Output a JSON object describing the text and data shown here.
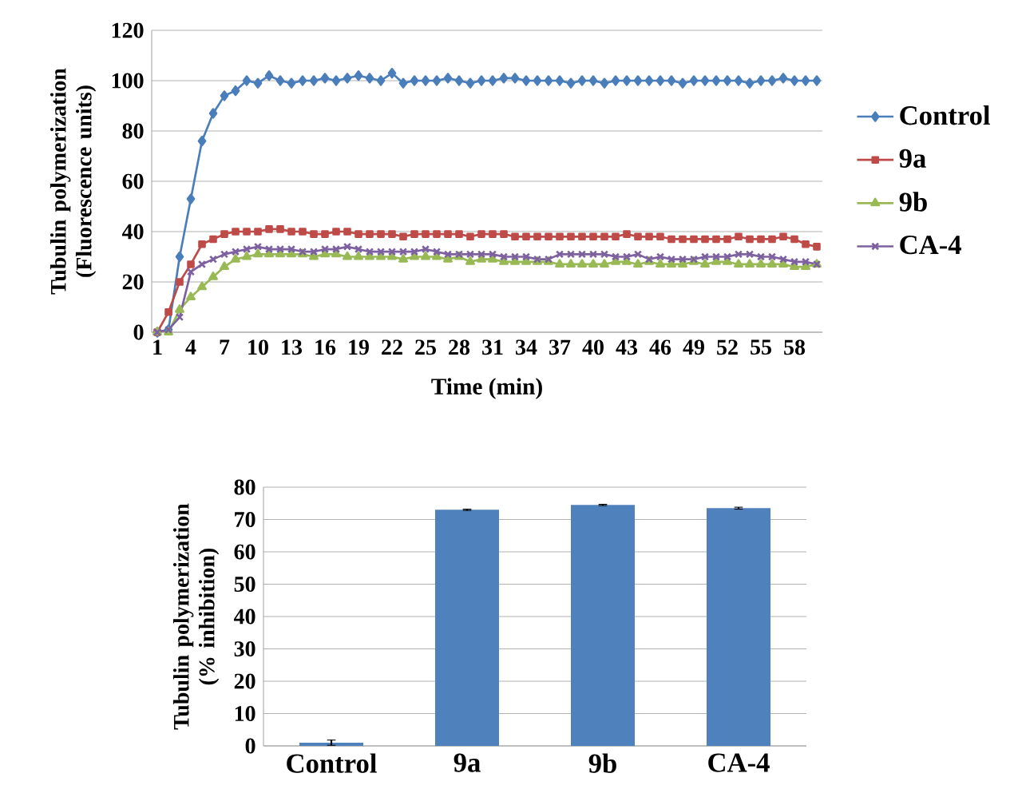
{
  "chart_data": [
    {
      "type": "line",
      "xlabel": "Time (min)",
      "ylabel": "Tubulin polymerization (Fluorescence units)",
      "categories": [
        "1",
        null,
        null,
        "4",
        null,
        null,
        "7",
        null,
        null,
        "10",
        null,
        null,
        "13",
        null,
        null,
        "16",
        null,
        null,
        "19",
        null,
        null,
        "22",
        null,
        null,
        "25",
        null,
        null,
        "28",
        null,
        null,
        "31",
        null,
        null,
        "34",
        null,
        null,
        "37",
        null,
        null,
        "40",
        null,
        null,
        "43",
        null,
        null,
        "46",
        null,
        null,
        "49",
        null,
        null,
        "52",
        null,
        null,
        "55",
        null,
        null,
        "58",
        null,
        null
      ],
      "ylim": [
        0,
        120
      ],
      "yticks": [
        0,
        20,
        40,
        60,
        80,
        100,
        120
      ],
      "grid": "y",
      "legend": "right",
      "series": [
        {
          "name": "Control",
          "color": "#4a7ebb",
          "marker": "diamond",
          "values": [
            0,
            1,
            30,
            53,
            76,
            87,
            94,
            96,
            100,
            99,
            102,
            100,
            99,
            100,
            100,
            101,
            100,
            101,
            102,
            101,
            100,
            103,
            99,
            100,
            100,
            100,
            101,
            100,
            99,
            100,
            100,
            101,
            101,
            100,
            100,
            100,
            100,
            99,
            100,
            100,
            99,
            100,
            100,
            100,
            100,
            100,
            100,
            99,
            100,
            100,
            100,
            100,
            100,
            99,
            100,
            100,
            101,
            100,
            100,
            100
          ]
        },
        {
          "name": "9a",
          "color": "#be4b48",
          "marker": "square",
          "values": [
            0,
            8,
            20,
            27,
            35,
            37,
            39,
            40,
            40,
            40,
            41,
            41,
            40,
            40,
            39,
            39,
            40,
            40,
            39,
            39,
            39,
            39,
            38,
            39,
            39,
            39,
            39,
            39,
            38,
            39,
            39,
            39,
            38,
            38,
            38,
            38,
            38,
            38,
            38,
            38,
            38,
            38,
            39,
            38,
            38,
            38,
            37,
            37,
            37,
            37,
            37,
            37,
            38,
            37,
            37,
            37,
            38,
            37,
            35,
            34
          ]
        },
        {
          "name": "9b",
          "color": "#98b954",
          "marker": "triangle",
          "values": [
            0,
            0,
            9,
            14,
            18,
            22,
            26,
            29,
            30,
            31,
            31,
            31,
            31,
            31,
            30,
            31,
            31,
            30,
            30,
            30,
            30,
            30,
            29,
            30,
            30,
            30,
            29,
            30,
            28,
            29,
            29,
            28,
            28,
            28,
            28,
            28,
            27,
            27,
            27,
            27,
            27,
            28,
            28,
            27,
            28,
            27,
            27,
            27,
            28,
            27,
            28,
            28,
            27,
            27,
            27,
            27,
            27,
            26,
            26,
            27
          ]
        },
        {
          "name": "CA-4",
          "color": "#7d60a0",
          "marker": "cross",
          "values": [
            0,
            1,
            6,
            24,
            27,
            29,
            31,
            32,
            33,
            34,
            33,
            33,
            33,
            32,
            32,
            33,
            33,
            34,
            33,
            32,
            32,
            32,
            32,
            32,
            33,
            32,
            31,
            31,
            31,
            31,
            31,
            30,
            30,
            30,
            29,
            29,
            31,
            31,
            31,
            31,
            31,
            30,
            30,
            31,
            29,
            30,
            29,
            29,
            29,
            30,
            30,
            30,
            31,
            31,
            30,
            30,
            29,
            28,
            28,
            27
          ]
        }
      ]
    },
    {
      "type": "bar",
      "ylabel": "Tubulin polymerization (% inhibition)",
      "categories": [
        "Control",
        "9a",
        "9b",
        "CA-4"
      ],
      "values": [
        1,
        73,
        74.5,
        73.5
      ],
      "errors": [
        0.8,
        0.2,
        0.2,
        0.3
      ],
      "color": "#4f81bd",
      "ylim": [
        0,
        80
      ],
      "yticks": [
        0,
        10,
        20,
        30,
        40,
        50,
        60,
        70,
        80
      ],
      "grid": "y"
    }
  ]
}
